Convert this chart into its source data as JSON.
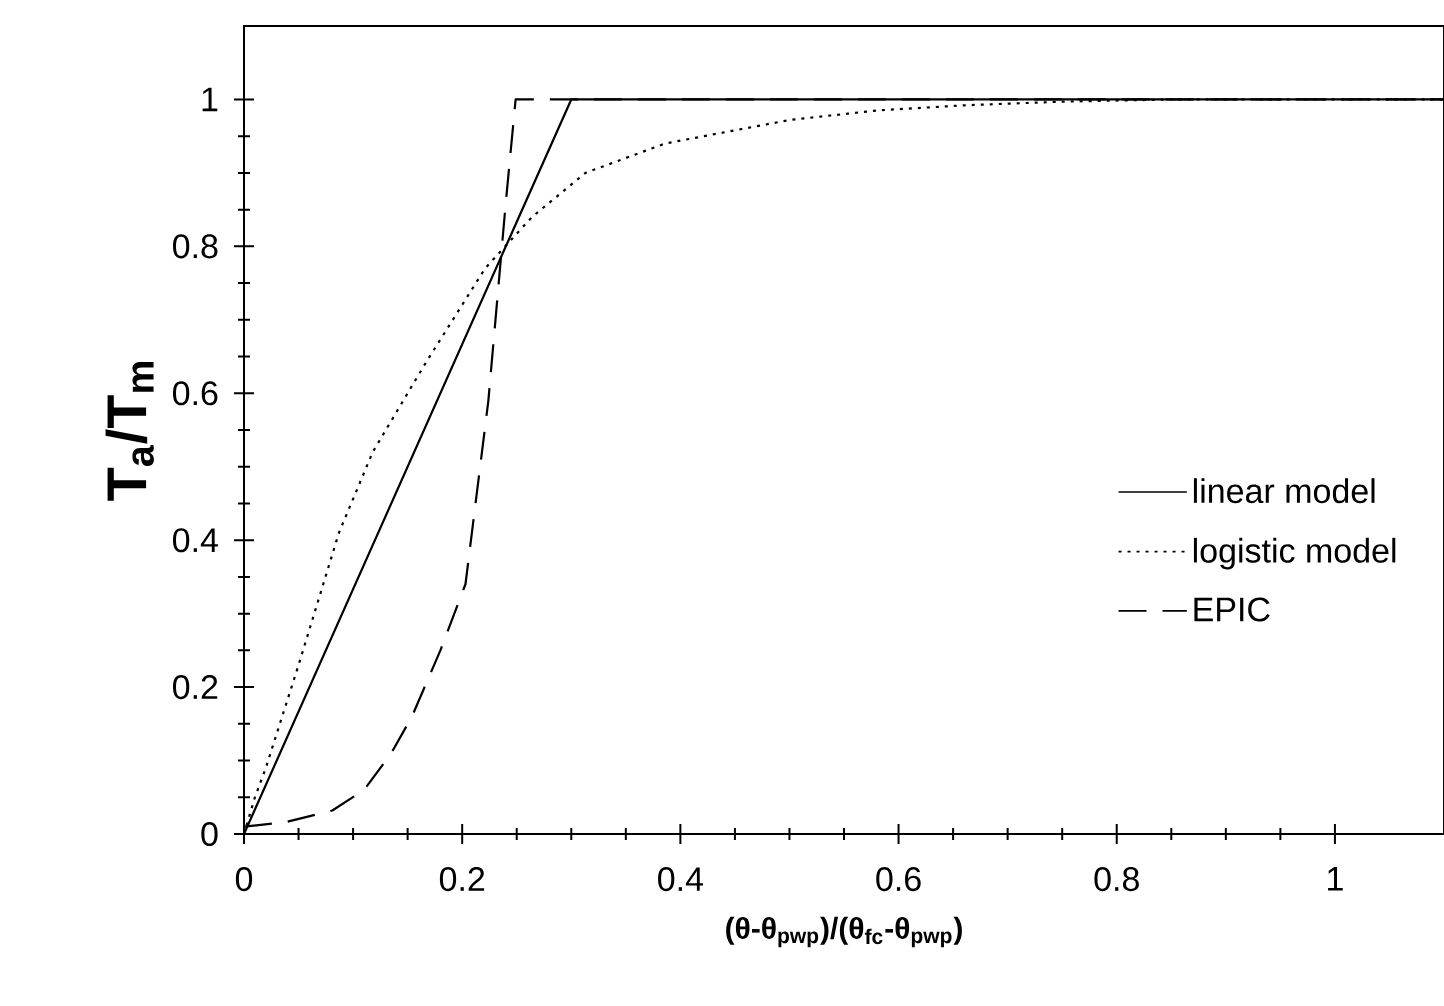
{
  "chart_data": {
    "type": "line",
    "xlabel": "(θ-θ$_{pwp}$)/(θ$_{fc}$-θ$_{pwp}$)",
    "ylabel": "T$_{a}$/T$_{m}$",
    "xlim": [
      0,
      1.1
    ],
    "ylim": [
      0,
      1.1
    ],
    "xticks": [
      0,
      0.2,
      0.4,
      0.6,
      0.8,
      1
    ],
    "yticks": [
      0,
      0.2,
      0.4,
      0.6,
      0.8,
      1
    ],
    "grid": false,
    "legend": "right",
    "series": [
      {
        "name": "linear model",
        "color": "#000000",
        "line_style": "solid",
        "x": [
          0,
          0.3,
          1.1
        ],
        "values": [
          0,
          1,
          1
        ]
      },
      {
        "name": "logistic model",
        "color": "#000000",
        "line_style": "dotted",
        "x": [
          0,
          0.01,
          0.02,
          0.05,
          0.087,
          0.118,
          0.166,
          0.221,
          0.264,
          0.313,
          0.386,
          0.5,
          0.58,
          0.66,
          0.75,
          0.85,
          1.1
        ],
        "values": [
          0,
          0.05,
          0.09,
          0.23,
          0.41,
          0.52,
          0.64,
          0.77,
          0.84,
          0.9,
          0.94,
          0.972,
          0.985,
          0.992,
          0.997,
          1,
          1
        ]
      },
      {
        "name": "EPIC",
        "color": "#000000",
        "line_style": "dashed",
        "x": [
          0,
          0.038,
          0.081,
          0.11,
          0.135,
          0.154,
          0.18,
          0.203,
          0.224,
          0.24,
          0.249,
          1.1
        ],
        "values": [
          0.01,
          0.016,
          0.032,
          0.06,
          0.11,
          0.16,
          0.25,
          0.34,
          0.59,
          0.86,
          1,
          1
        ]
      }
    ]
  }
}
